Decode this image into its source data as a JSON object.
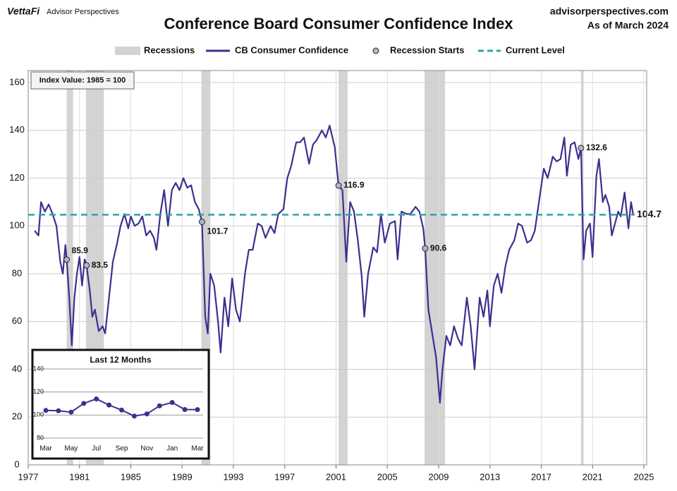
{
  "header": {
    "brand": "VettaFi",
    "brand_sub": "Advisor Perspectives",
    "site": "advisorperspectives.com",
    "as_of": "As of March 2024"
  },
  "chart_data": [
    {
      "type": "line",
      "title": "Conference Board Consumer Confidence Index",
      "note": "Index Value: 1985 = 100",
      "x": [
        1977.5,
        1977.8,
        1978.0,
        1978.3,
        1978.6,
        1978.9,
        1979.2,
        1979.5,
        1979.7,
        1979.9,
        1980.0,
        1980.2,
        1980.4,
        1980.6,
        1980.8,
        1981.0,
        1981.2,
        1981.4,
        1981.55,
        1981.8,
        1982.0,
        1982.2,
        1982.5,
        1982.8,
        1983.0,
        1983.3,
        1983.6,
        1983.9,
        1984.2,
        1984.5,
        1984.8,
        1985.0,
        1985.3,
        1985.6,
        1985.9,
        1986.2,
        1986.5,
        1986.8,
        1987.0,
        1987.3,
        1987.6,
        1987.9,
        1988.2,
        1988.5,
        1988.8,
        1989.1,
        1989.4,
        1989.7,
        1990.0,
        1990.3,
        1990.55,
        1990.8,
        1991.0,
        1991.2,
        1991.5,
        1991.8,
        1992.0,
        1992.3,
        1992.6,
        1992.9,
        1993.2,
        1993.5,
        1993.9,
        1994.2,
        1994.5,
        1994.9,
        1995.2,
        1995.5,
        1995.9,
        1996.2,
        1996.5,
        1996.9,
        1997.2,
        1997.5,
        1997.9,
        1998.2,
        1998.5,
        1998.9,
        1999.2,
        1999.5,
        1999.9,
        2000.2,
        2000.5,
        2000.9,
        2001.2,
        2001.5,
        2001.8,
        2002.1,
        2002.4,
        2002.7,
        2003.0,
        2003.2,
        2003.5,
        2003.9,
        2004.2,
        2004.5,
        2004.8,
        2005.2,
        2005.6,
        2005.8,
        2006.1,
        2006.5,
        2006.8,
        2007.2,
        2007.5,
        2007.8,
        2007.95,
        2008.2,
        2008.5,
        2008.8,
        2009.1,
        2009.3,
        2009.6,
        2009.9,
        2010.2,
        2010.5,
        2010.8,
        2011.2,
        2011.5,
        2011.8,
        2012.2,
        2012.5,
        2012.8,
        2013.0,
        2013.3,
        2013.6,
        2013.9,
        2014.2,
        2014.5,
        2014.9,
        2015.2,
        2015.5,
        2015.9,
        2016.2,
        2016.5,
        2016.9,
        2017.2,
        2017.5,
        2017.9,
        2018.2,
        2018.5,
        2018.8,
        2019.0,
        2019.3,
        2019.6,
        2019.9,
        2020.1,
        2020.3,
        2020.5,
        2020.8,
        2021.0,
        2021.3,
        2021.5,
        2021.8,
        2022.0,
        2022.3,
        2022.5,
        2022.8,
        2023.0,
        2023.2,
        2023.5,
        2023.8,
        2024.0,
        2024.17
      ],
      "series": [
        {
          "name": "CB Consumer Confidence",
          "color": "#3d2f8f",
          "values": [
            98,
            96,
            110,
            106,
            109,
            105,
            100,
            85,
            80,
            92,
            86,
            70,
            50,
            70,
            80,
            87,
            75,
            86,
            83.5,
            73,
            62,
            65,
            56,
            58,
            55,
            70,
            85,
            92,
            100,
            105,
            99,
            104,
            100,
            101,
            104,
            96,
            98,
            95,
            90,
            105,
            115,
            100,
            115,
            118,
            115,
            120,
            116,
            117,
            110,
            107,
            101.7,
            62,
            55,
            80,
            75,
            60,
            47,
            70,
            58,
            78,
            65,
            60,
            80,
            90,
            90,
            101,
            100,
            95,
            100,
            97,
            105,
            107,
            120,
            125,
            135,
            135,
            137,
            126,
            134,
            136,
            140,
            137,
            142,
            133,
            116.9,
            115,
            85,
            110,
            106,
            94,
            79,
            62,
            80,
            91,
            89,
            105,
            93,
            101,
            102,
            86,
            106,
            105,
            105,
            108,
            106,
            99,
            90.6,
            65,
            55,
            45,
            26,
            40,
            54,
            50,
            58,
            53,
            50,
            70,
            58,
            40,
            70,
            62,
            73,
            58,
            75,
            80,
            72,
            83,
            90,
            94,
            101,
            100,
            93,
            94,
            98,
            113,
            124,
            120,
            129,
            127,
            128,
            137,
            121,
            134,
            135,
            128,
            132.6,
            86,
            98,
            101,
            87,
            121,
            128,
            110,
            113,
            108,
            96,
            102,
            106,
            104,
            114,
            99,
            110,
            104.7
          ]
        }
      ],
      "recessions": {
        "name": "Recessions",
        "color": "#d3d3d3",
        "ranges": [
          [
            1980.0,
            1980.5
          ],
          [
            1981.5,
            1982.9
          ],
          [
            1990.5,
            1991.2
          ],
          [
            2001.2,
            2001.9
          ],
          [
            2007.9,
            2009.5
          ],
          [
            2020.1,
            2020.3
          ]
        ]
      },
      "recession_starts": {
        "name": "Recession Starts",
        "color": "#a9b8c8",
        "x": [
          1980.0,
          1981.55,
          1990.55,
          2001.2,
          2007.95,
          2020.1
        ],
        "values": [
          85.9,
          83.5,
          101.7,
          116.9,
          90.6,
          132.6
        ]
      },
      "current_level": {
        "name": "Current Level",
        "color": "#2aa5a8",
        "value": 104.7
      },
      "xlim": [
        1977,
        2025
      ],
      "xticks": [
        1977,
        1981,
        1985,
        1989,
        1993,
        1997,
        2001,
        2005,
        2009,
        2013,
        2017,
        2021,
        2025
      ],
      "ylim": [
        0,
        160
      ],
      "yticks": [
        0,
        20,
        40,
        60,
        80,
        100,
        120,
        140,
        160
      ],
      "grid": true
    },
    {
      "type": "line",
      "title": "Last 12 Months",
      "categories": [
        "Mar",
        null,
        "May",
        null,
        "Jul",
        null,
        "Sep",
        null,
        "Nov",
        null,
        "Jan",
        null,
        "Mar"
      ],
      "series": [
        {
          "color": "#3d2f8f",
          "values": [
            104.0,
            103.7,
            102.5,
            110.1,
            114.0,
            108.7,
            104.3,
            99.1,
            101.0,
            108.0,
            110.9,
            104.8,
            104.7
          ]
        }
      ],
      "ylim": [
        80,
        140
      ],
      "yticks": [
        80,
        100,
        120,
        140
      ],
      "grid": true
    }
  ]
}
